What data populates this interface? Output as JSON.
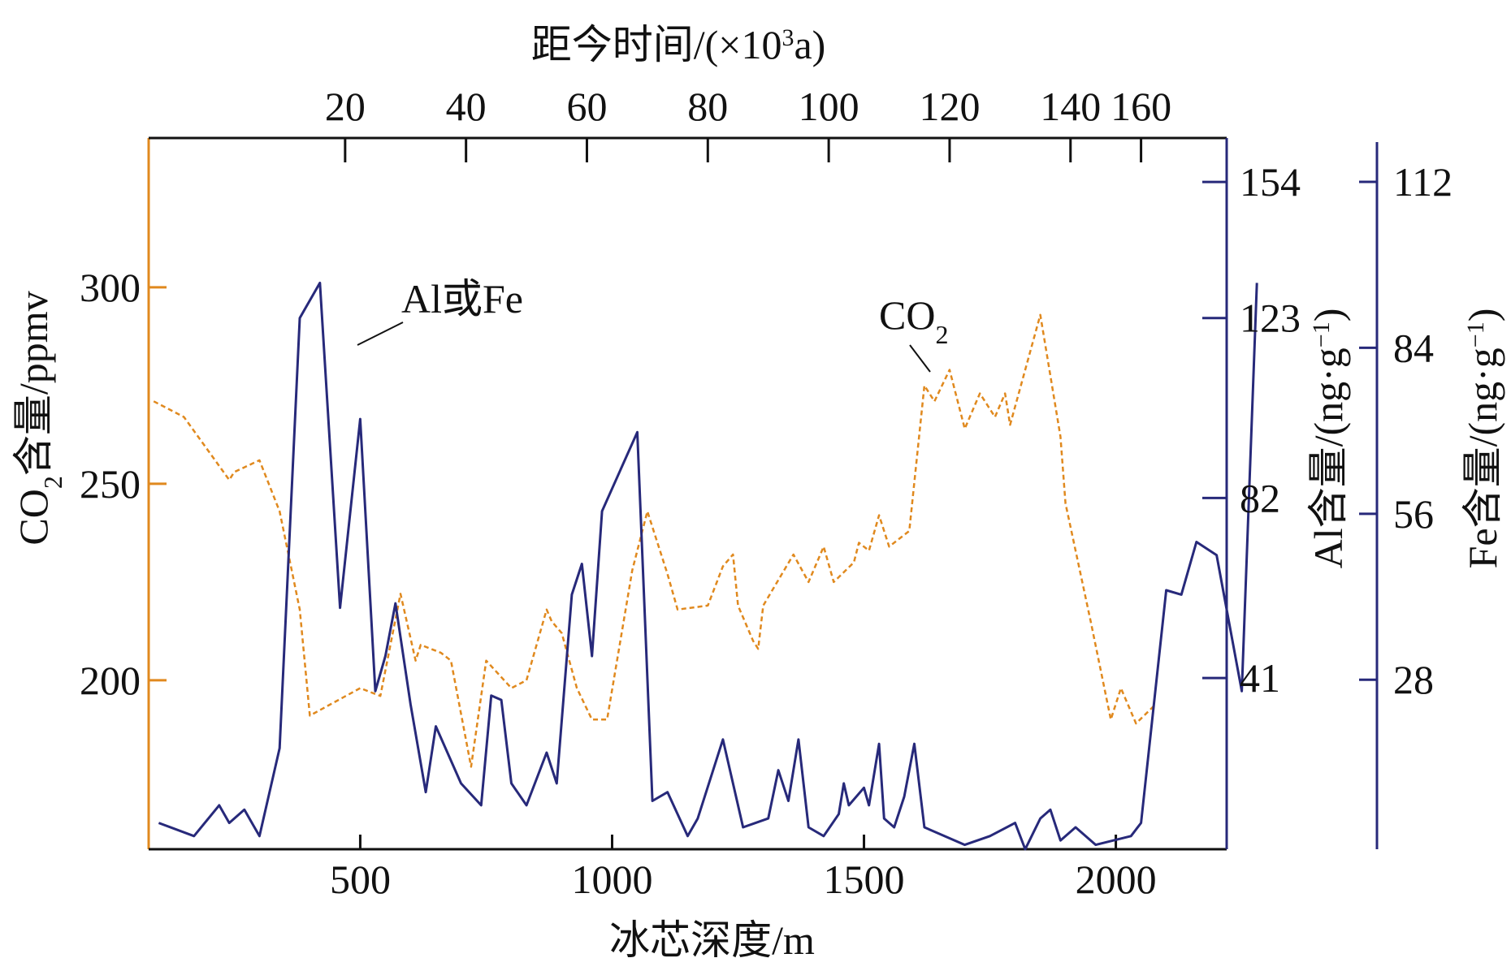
{
  "chart_data": {
    "type": "line",
    "title": "",
    "colors": {
      "co2": "#E0891E",
      "al_fe": "#27297A",
      "text": "#111111"
    },
    "x_bottom": {
      "label": "冰芯深度/m",
      "range": [
        80,
        2220
      ],
      "ticks": [
        500,
        1000,
        1500,
        2000
      ],
      "tick_labels": [
        "500",
        "1000",
        "1500",
        "2000"
      ]
    },
    "x_top": {
      "label": "距今时间/(×10³a)",
      "ticks_depth": [
        470,
        710,
        950,
        1190,
        1430,
        1670,
        1910,
        2050
      ],
      "tick_labels": [
        "20",
        "40",
        "60",
        "80",
        "100",
        "120",
        "140",
        "160"
      ]
    },
    "y_left": {
      "label": "CO₂含量/ppmv",
      "range": [
        157,
        338
      ],
      "ticks": [
        200,
        250,
        300
      ],
      "tick_labels": [
        "200",
        "250",
        "300"
      ]
    },
    "y_right_al": {
      "label": "Al含量/(ng·g⁻¹)",
      "range": [
        2,
        164
      ],
      "ticks": [
        41,
        82,
        123,
        154
      ],
      "tick_labels": [
        "41",
        "82",
        "123",
        "154"
      ]
    },
    "y_right_fe": {
      "label": "Fe含量/(ng·g⁻¹)",
      "range": [
        -0.6,
        119.4
      ],
      "ticks": [
        28,
        56,
        84,
        112
      ],
      "tick_labels": [
        "28",
        "56",
        "84",
        "112"
      ]
    },
    "annotations": {
      "al_fe": "Al或Fe",
      "co2": "CO₂"
    },
    "series": [
      {
        "name": "CO₂",
        "axis": "y_left",
        "style": "dashed",
        "points": [
          [
            90,
            271
          ],
          [
            150,
            267
          ],
          [
            240,
            251
          ],
          [
            250,
            253
          ],
          [
            300,
            256
          ],
          [
            340,
            243
          ],
          [
            380,
            218
          ],
          [
            400,
            191
          ],
          [
            500,
            198
          ],
          [
            540,
            196
          ],
          [
            580,
            222
          ],
          [
            610,
            205
          ],
          [
            620,
            209
          ],
          [
            660,
            207
          ],
          [
            680,
            205
          ],
          [
            720,
            178
          ],
          [
            750,
            205
          ],
          [
            800,
            198
          ],
          [
            830,
            200
          ],
          [
            870,
            218
          ],
          [
            880,
            215
          ],
          [
            900,
            212
          ],
          [
            930,
            198
          ],
          [
            960,
            190
          ],
          [
            990,
            190
          ],
          [
            1040,
            228
          ],
          [
            1070,
            243
          ],
          [
            1110,
            227
          ],
          [
            1130,
            218
          ],
          [
            1190,
            219
          ],
          [
            1220,
            229
          ],
          [
            1240,
            232
          ],
          [
            1250,
            219
          ],
          [
            1280,
            210
          ],
          [
            1290,
            208
          ],
          [
            1300,
            219
          ],
          [
            1360,
            232
          ],
          [
            1390,
            225
          ],
          [
            1420,
            234
          ],
          [
            1440,
            225
          ],
          [
            1480,
            230
          ],
          [
            1490,
            235
          ],
          [
            1510,
            233
          ],
          [
            1530,
            242
          ],
          [
            1550,
            234
          ],
          [
            1590,
            238
          ],
          [
            1620,
            275
          ],
          [
            1640,
            271
          ],
          [
            1670,
            279
          ],
          [
            1700,
            264
          ],
          [
            1730,
            273
          ],
          [
            1760,
            267
          ],
          [
            1780,
            273
          ],
          [
            1790,
            265
          ],
          [
            1850,
            293
          ],
          [
            1890,
            262
          ],
          [
            1900,
            245
          ],
          [
            1950,
            215
          ],
          [
            1990,
            190
          ],
          [
            2010,
            198
          ],
          [
            2040,
            189
          ],
          [
            2080,
            194
          ]
        ]
      },
      {
        "name": "Al或Fe",
        "axis": "y_right_al",
        "style": "solid",
        "points": [
          [
            100,
            8
          ],
          [
            170,
            5
          ],
          [
            220,
            12
          ],
          [
            240,
            8
          ],
          [
            270,
            11
          ],
          [
            300,
            5
          ],
          [
            340,
            25
          ],
          [
            380,
            123
          ],
          [
            420,
            131
          ],
          [
            460,
            57
          ],
          [
            500,
            100
          ],
          [
            530,
            38
          ],
          [
            550,
            46
          ],
          [
            570,
            58
          ],
          [
            600,
            35
          ],
          [
            630,
            15
          ],
          [
            650,
            30
          ],
          [
            700,
            17
          ],
          [
            740,
            12
          ],
          [
            760,
            37
          ],
          [
            780,
            36
          ],
          [
            800,
            17
          ],
          [
            830,
            12
          ],
          [
            870,
            24
          ],
          [
            890,
            17
          ],
          [
            920,
            60
          ],
          [
            940,
            67
          ],
          [
            960,
            46
          ],
          [
            980,
            79
          ],
          [
            1050,
            97
          ],
          [
            1080,
            13
          ],
          [
            1110,
            15
          ],
          [
            1150,
            5
          ],
          [
            1170,
            9
          ],
          [
            1220,
            27
          ],
          [
            1260,
            7
          ],
          [
            1310,
            9
          ],
          [
            1330,
            20
          ],
          [
            1350,
            13
          ],
          [
            1370,
            27
          ],
          [
            1390,
            7
          ],
          [
            1420,
            5
          ],
          [
            1450,
            10
          ],
          [
            1460,
            17
          ],
          [
            1470,
            12
          ],
          [
            1500,
            16
          ],
          [
            1510,
            12
          ],
          [
            1530,
            26
          ],
          [
            1540,
            9
          ],
          [
            1560,
            7
          ],
          [
            1580,
            14
          ],
          [
            1600,
            26
          ],
          [
            1620,
            7
          ],
          [
            1700,
            3
          ],
          [
            1750,
            5
          ],
          [
            1800,
            8
          ],
          [
            1820,
            2
          ],
          [
            1850,
            9
          ],
          [
            1870,
            11
          ],
          [
            1890,
            4
          ],
          [
            1920,
            7
          ],
          [
            1960,
            3
          ],
          [
            2030,
            5
          ],
          [
            2050,
            8
          ],
          [
            2100,
            61
          ],
          [
            2130,
            60
          ],
          [
            2160,
            72
          ],
          [
            2200,
            69
          ],
          [
            2250,
            38
          ],
          [
            2280,
            131
          ]
        ]
      }
    ]
  }
}
